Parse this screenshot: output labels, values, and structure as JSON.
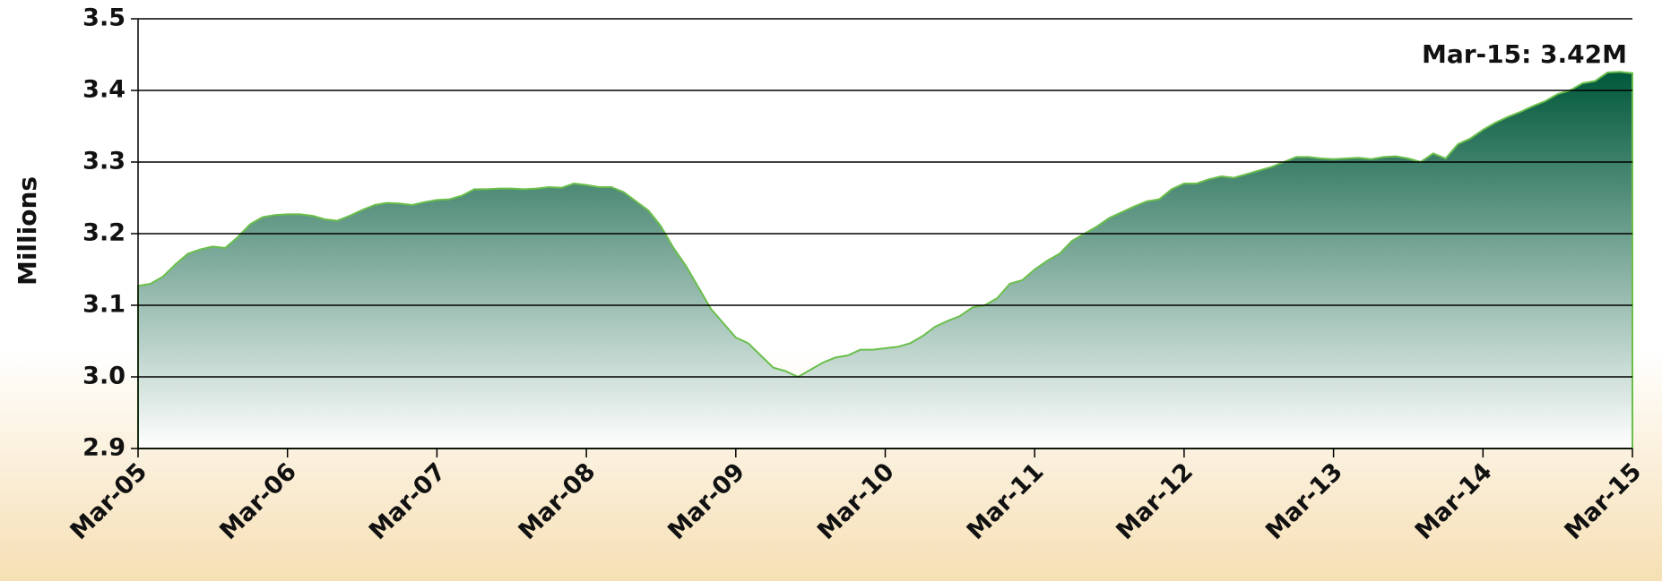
{
  "chart_data": {
    "type": "area",
    "y_label": "Millions",
    "annotation": "Mar-15: 3.42M",
    "categories": [
      "Mar-05",
      null,
      null,
      null,
      null,
      null,
      null,
      null,
      null,
      null,
      null,
      null,
      "Mar-06",
      null,
      null,
      null,
      null,
      null,
      null,
      null,
      null,
      null,
      null,
      null,
      "Mar-07",
      null,
      null,
      null,
      null,
      null,
      null,
      null,
      null,
      null,
      null,
      null,
      "Mar-08",
      null,
      null,
      null,
      null,
      null,
      null,
      null,
      null,
      null,
      null,
      null,
      "Mar-09",
      null,
      null,
      null,
      null,
      null,
      null,
      null,
      null,
      null,
      null,
      null,
      "Mar-10",
      null,
      null,
      null,
      null,
      null,
      null,
      null,
      null,
      null,
      null,
      null,
      "Mar-11",
      null,
      null,
      null,
      null,
      null,
      null,
      null,
      null,
      null,
      null,
      null,
      "Mar-12",
      null,
      null,
      null,
      null,
      null,
      null,
      null,
      null,
      null,
      null,
      null,
      "Mar-13",
      null,
      null,
      null,
      null,
      null,
      null,
      null,
      null,
      null,
      null,
      null,
      "Mar-14",
      null,
      null,
      null,
      null,
      null,
      null,
      null,
      null,
      null,
      null,
      null,
      "Mar-15"
    ],
    "values": [
      3.127,
      3.13,
      3.14,
      3.157,
      3.172,
      3.178,
      3.182,
      3.18,
      3.195,
      3.213,
      3.223,
      3.226,
      3.227,
      3.227,
      3.225,
      3.22,
      3.218,
      3.225,
      3.233,
      3.24,
      3.243,
      3.242,
      3.24,
      3.244,
      3.247,
      3.248,
      3.253,
      3.262,
      3.262,
      3.263,
      3.263,
      3.262,
      3.263,
      3.265,
      3.264,
      3.27,
      3.268,
      3.265,
      3.265,
      3.258,
      3.245,
      3.232,
      3.21,
      3.18,
      3.155,
      3.125,
      3.095,
      3.075,
      3.055,
      3.047,
      3.03,
      3.013,
      3.008,
      3.0,
      3.01,
      3.02,
      3.027,
      3.03,
      3.038,
      3.038,
      3.04,
      3.042,
      3.047,
      3.057,
      3.07,
      3.078,
      3.085,
      3.097,
      3.1,
      3.11,
      3.13,
      3.135,
      3.15,
      3.162,
      3.172,
      3.19,
      3.2,
      3.21,
      3.222,
      3.23,
      3.238,
      3.245,
      3.248,
      3.262,
      3.27,
      3.27,
      3.276,
      3.28,
      3.278,
      3.283,
      3.288,
      3.293,
      3.3,
      3.307,
      3.307,
      3.305,
      3.304,
      3.305,
      3.306,
      3.304,
      3.307,
      3.308,
      3.305,
      3.3,
      3.312,
      3.305,
      3.325,
      3.333,
      3.345,
      3.355,
      3.363,
      3.37,
      3.378,
      3.385,
      3.395,
      3.4,
      3.41,
      3.413,
      3.425,
      3.426,
      3.424
    ],
    "color": "#00583a",
    "line_color": "#6abf4b",
    "ylim": [
      2.9,
      3.5
    ],
    "yticks": [
      2.9,
      {
        "value": 3,
        "label": "3.0"
      },
      3.1,
      3.2,
      3.3,
      3.4,
      3.5
    ],
    "grid": true
  }
}
